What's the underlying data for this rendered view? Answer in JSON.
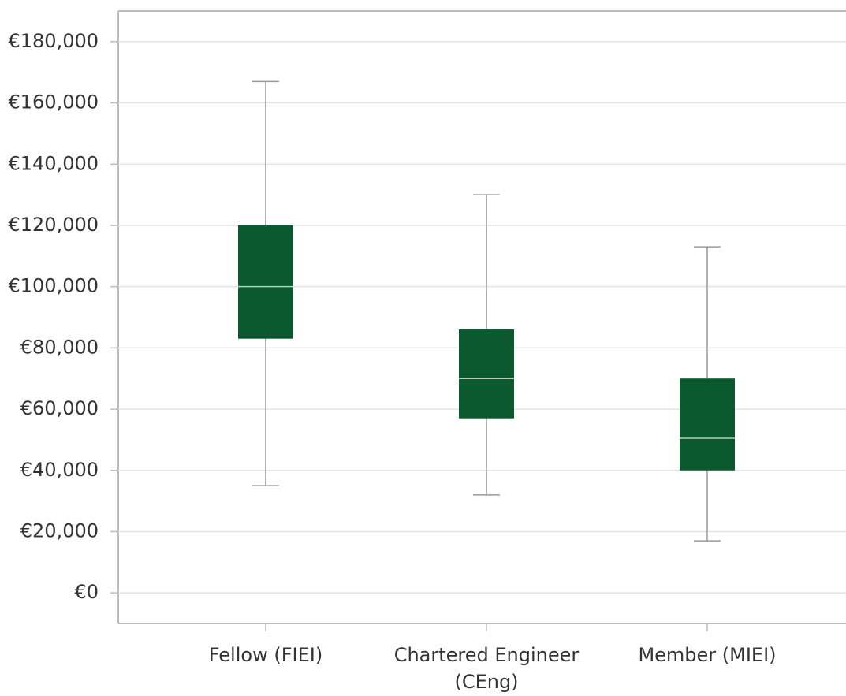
{
  "chart_data": {
    "type": "box",
    "categories": [
      "Fellow (FIEI)",
      "Chartered Engineer (CEng)",
      "Member (MIEI)"
    ],
    "boxes": [
      {
        "min": 35000,
        "q1": 83000,
        "median": 100000,
        "q3": 120000,
        "max": 167000
      },
      {
        "min": 32000,
        "q1": 57000,
        "median": 70000,
        "q3": 86000,
        "max": 130000
      },
      {
        "min": 17000,
        "q1": 40000,
        "median": 50500,
        "q3": 70000,
        "max": 113000
      }
    ],
    "color": "#0b5a2f",
    "ylim": [
      -10000,
      190000
    ],
    "yticks": [
      {
        "value": 0,
        "label": "€0"
      },
      {
        "value": 20000,
        "label": "€20,000"
      },
      {
        "value": 40000,
        "label": "€40,000"
      },
      {
        "value": 60000,
        "label": "€60,000"
      },
      {
        "value": 80000,
        "label": "€80,000"
      },
      {
        "value": 100000,
        "label": "€100,000"
      },
      {
        "value": 120000,
        "label": "€120,000"
      },
      {
        "value": 140000,
        "label": "€140,000"
      },
      {
        "value": 160000,
        "label": "€160,000"
      },
      {
        "value": 180000,
        "label": "€180,000"
      }
    ],
    "grid": true
  }
}
